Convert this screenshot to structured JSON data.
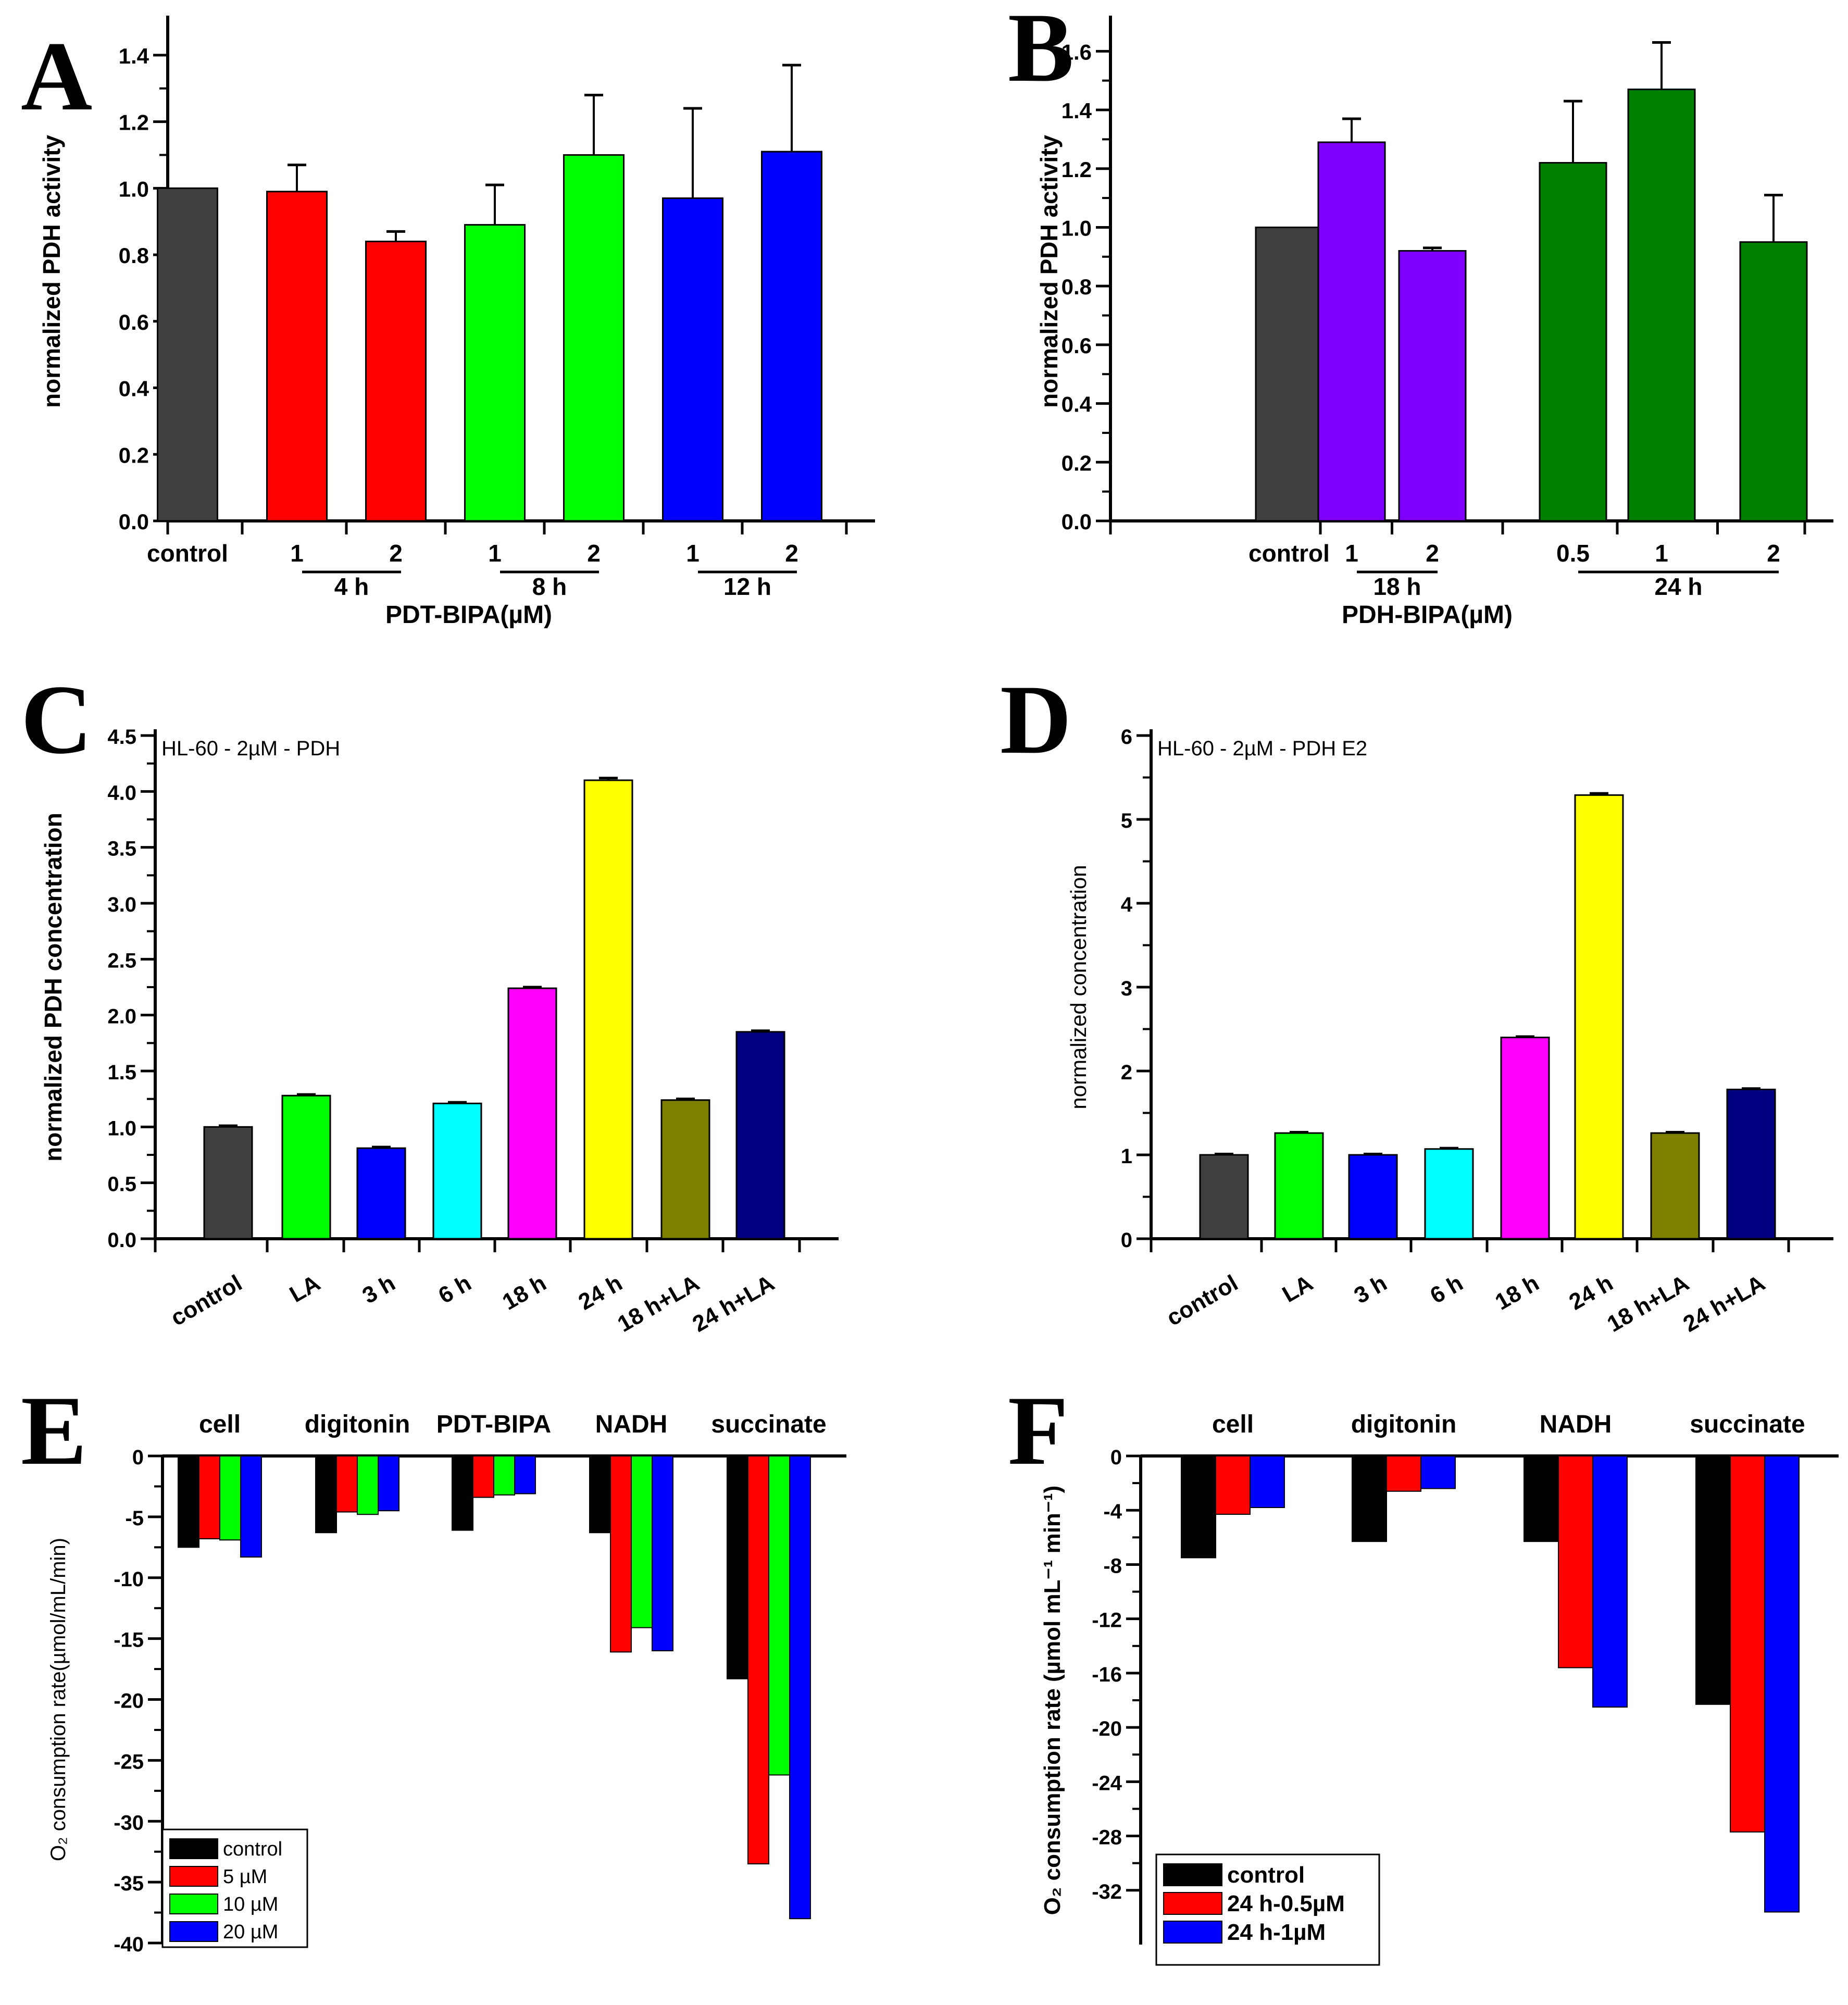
{
  "chart_data": [
    {
      "type": "bar",
      "panel_label": "A",
      "ylabel": "normalized PDH activity",
      "xlabel": "PDT-BIPA(µM)",
      "ylim": [
        0,
        1.5
      ],
      "yticks": [
        0.0,
        0.2,
        0.4,
        0.6,
        0.8,
        1.0,
        1.2,
        1.4
      ],
      "ytick_labels": [
        "0.0",
        "0.2",
        "0.4",
        "0.6",
        "0.8",
        "1.0",
        "1.2",
        "1.4"
      ],
      "categories": [
        "control",
        "1",
        "2",
        "1",
        "2",
        "1",
        "2"
      ],
      "values": [
        1.0,
        0.99,
        0.84,
        0.89,
        1.1,
        0.97,
        1.11
      ],
      "errors": [
        0,
        0.08,
        0.03,
        0.12,
        0.18,
        0.27,
        0.26
      ],
      "colors": [
        "#404040",
        "#ff0000",
        "#ff0000",
        "#00ff00",
        "#00ff00",
        "#0000ff",
        "#0000ff"
      ],
      "groups": [
        {
          "label": "4 h",
          "from": 1,
          "to": 2
        },
        {
          "label": "8 h",
          "from": 3,
          "to": 4
        },
        {
          "label": "12 h",
          "from": 5,
          "to": 6
        }
      ]
    },
    {
      "type": "bar",
      "panel_label": "B",
      "ylabel": "normalized PDH activity",
      "xlabel": "PDH-BIPA(µM)",
      "ylim": [
        0,
        1.7
      ],
      "yticks": [
        0.0,
        0.2,
        0.4,
        0.6,
        0.8,
        1.0,
        1.2,
        1.4,
        1.6
      ],
      "ytick_labels": [
        "0.0",
        "0.2",
        "0.4",
        "0.6",
        "0.8",
        "1.0",
        "1.2",
        "1.4",
        "1.6"
      ],
      "categories": [
        "control",
        "1",
        "2",
        "0.5",
        "1",
        "2"
      ],
      "values": [
        1.0,
        1.29,
        0.92,
        1.22,
        1.47,
        0.95
      ],
      "errors": [
        0,
        0.08,
        0.01,
        0.21,
        0.16,
        0.16
      ],
      "colors": [
        "#404040",
        "#8000ff",
        "#8000ff",
        "#008000",
        "#008000",
        "#008000"
      ],
      "groups": [
        {
          "label": "18 h",
          "from": 1,
          "to": 2
        },
        {
          "label": "24 h",
          "from": 3,
          "to": 5
        }
      ]
    },
    {
      "type": "bar",
      "panel_label": "C",
      "ylabel": "normalized PDH concentration",
      "annotation": "HL-60 - 2µM - PDH",
      "ylim": [
        0,
        4.5
      ],
      "yticks": [
        0.0,
        0.5,
        1.0,
        1.5,
        2.0,
        2.5,
        3.0,
        3.5,
        4.0,
        4.5
      ],
      "ytick_labels": [
        "0.0",
        "0.5",
        "1.0",
        "1.5",
        "2.0",
        "2.5",
        "3.0",
        "3.5",
        "4.0",
        "4.5"
      ],
      "categories": [
        "control",
        "LA",
        "3 h",
        "6 h",
        "18 h",
        "24 h",
        "18 h+LA",
        "24 h+LA"
      ],
      "values": [
        1.0,
        1.28,
        0.81,
        1.21,
        2.24,
        4.1,
        1.24,
        1.85
      ],
      "errors": [
        0.01,
        0.01,
        0.01,
        0.01,
        0.01,
        0.02,
        0.01,
        0.01
      ],
      "colors": [
        "#404040",
        "#00ff00",
        "#0000ff",
        "#00ffff",
        "#ff00ff",
        "#ffff00",
        "#808000",
        "#000080"
      ]
    },
    {
      "type": "bar",
      "panel_label": "D",
      "ylabel": "normalized concentration",
      "annotation": "HL-60 - 2µM - PDH E2",
      "ylim": [
        0,
        6
      ],
      "yticks": [
        0,
        1,
        2,
        3,
        4,
        5,
        6
      ],
      "ytick_labels": [
        "0",
        "1",
        "2",
        "3",
        "4",
        "5",
        "6"
      ],
      "categories": [
        "control",
        "LA",
        "3 h",
        "6 h",
        "18 h",
        "24 h",
        "18 h+LA",
        "24 h+LA"
      ],
      "values": [
        1.0,
        1.26,
        1.0,
        1.07,
        2.4,
        5.29,
        1.26,
        1.78
      ],
      "errors": [
        0.01,
        0.01,
        0.01,
        0.01,
        0.01,
        0.02,
        0.01,
        0.01
      ],
      "colors": [
        "#404040",
        "#00ff00",
        "#0000ff",
        "#00ffff",
        "#ff00ff",
        "#ffff00",
        "#808000",
        "#000080"
      ]
    },
    {
      "type": "bar",
      "panel_label": "E",
      "ylabel": "O₂ consumption rate(µmol/mL/min)",
      "ylim": [
        -40,
        0
      ],
      "yticks": [
        0,
        -5,
        -10,
        -15,
        -20,
        -25,
        -30,
        -35,
        -40
      ],
      "ytick_labels": [
        "0",
        "-5",
        "-10",
        "-15",
        "-20",
        "-25",
        "-30",
        "-35",
        "-40"
      ],
      "categories": [
        "cell",
        "digitonin",
        "PDT-BIPA",
        "NADH",
        "succinate"
      ],
      "series": [
        {
          "name": "control",
          "color": "#000000",
          "values": [
            -7.5,
            -6.3,
            -6.1,
            -6.3,
            -18.3
          ]
        },
        {
          "name": "5 µM",
          "color": "#ff0000",
          "values": [
            -6.8,
            -4.6,
            -3.4,
            -16.1,
            -33.5
          ]
        },
        {
          "name": "10 µM",
          "color": "#00ff00",
          "values": [
            -6.9,
            -4.8,
            -3.2,
            -14.1,
            -26.2
          ]
        },
        {
          "name": "20 µM",
          "color": "#0000ff",
          "values": [
            -8.3,
            -4.5,
            -3.1,
            -16.0,
            -38.0
          ]
        }
      ],
      "legend_position": "bottom-left"
    },
    {
      "type": "bar",
      "panel_label": "F",
      "ylabel": "O₂ consumption rate (µmol mL⁻¹ min⁻¹)",
      "ylim": [
        -36,
        0
      ],
      "yticks": [
        0,
        -4,
        -8,
        -12,
        -16,
        -20,
        -24,
        -28,
        -32
      ],
      "ytick_labels": [
        "0",
        "-4",
        "-8",
        "-12",
        "-16",
        "-20",
        "-24",
        "-28",
        "-32"
      ],
      "categories": [
        "cell",
        "digitonin",
        "NADH",
        "succinate"
      ],
      "series": [
        {
          "name": "control",
          "color": "#000000",
          "values": [
            -7.5,
            -6.3,
            -6.3,
            -18.3
          ]
        },
        {
          "name": "24 h-0.5µM",
          "color": "#ff0000",
          "values": [
            -4.3,
            -2.6,
            -15.6,
            -27.7
          ]
        },
        {
          "name": "24 h-1µM",
          "color": "#0000ff",
          "values": [
            -3.8,
            -2.4,
            -18.5,
            -33.6
          ]
        }
      ],
      "legend_position": "bottom-left"
    }
  ]
}
